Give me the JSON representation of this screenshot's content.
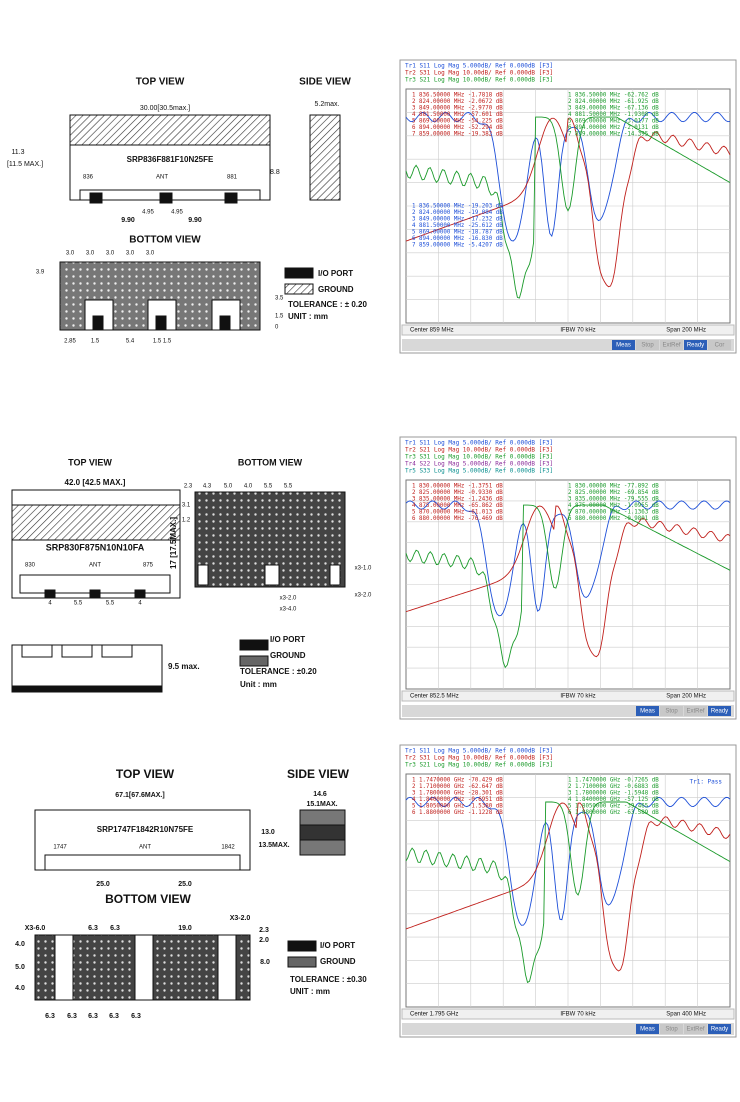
{
  "parts": [
    {
      "drawing": {
        "labels": [
          "TOP VIEW",
          "SIDE  VIEW",
          "30.00[30.5max.]",
          "5.2max.",
          "11.3",
          "[11.5 MAX.]",
          "8.8",
          "SRP836F881F10N25FE",
          "836",
          "ANT",
          "881",
          "4.95",
          "4.95",
          "9.90",
          "9.90",
          "BOTTOM   VIEW",
          "3.0",
          "3.0",
          "3.0",
          "3.0",
          "3.0",
          "3.9",
          "2.85",
          "1.5",
          "5.4",
          "1.5  1.5",
          "3.5",
          "1.5",
          "0",
          "I/O PORT",
          "GROUND",
          "TOLERANCE : ± 0.20",
          "UNIT :  mm"
        ]
      },
      "analyzer": {
        "traces": [
          "Tr1  S11  Log Mag  5.000dB/ Ref  0.000dB  [F3]",
          "Tr2  S31  Log Mag  10.00dB/ Ref  0.000dB  [F3]",
          "Tr3  S21  Log Mag  10.00dB/ Ref  0.000dB  [F3]"
        ],
        "markers_left": [
          "1   836.50000 MHz  -1.7818 dB",
          "2   824.00000 MHz  -2.0672 dB",
          "3   849.00000 MHz  -2.9770 dB",
          "4   881.50000 MHz  -57.601 dB",
          "5   869.00000 MHz  -54.225 dB",
          "6   894.00000 MHz  -52.294 dB",
          "7   859.00000 MHz  -19.382 dB"
        ],
        "markers_right": [
          "1   836.50000 MHz  -62.762 dB",
          "2   824.00000 MHz  -61.925 dB",
          "3   849.00000 MHz  -67.136 dB",
          "4   881.50000 MHz  -1.9308 dB",
          "5   869.00000 MHz  -3.0177 dB",
          "6   894.00000 MHz  -2.0131 dB",
          "7   859.00000 MHz  -14.395 dB"
        ],
        "markers_lower": [
          "1   836.50000 MHz  -19.203 dB",
          "2   824.00000 MHz  -19.084 dB",
          "3   849.00000 MHz  -17.232 dB",
          "4   881.50000 MHz  -25.612 dB",
          "5   869.00000 MHz  -18.787 dB",
          "6   894.00000 MHz  -16.830 dB",
          "7   859.00000 MHz  -5.4207 dB"
        ],
        "footer_left": "Center 859 MHz",
        "footer_mid": "IFBW 70 kHz",
        "footer_right": "Span 200 MHz",
        "buttons": [
          "Meas",
          "Stop",
          "ExtRef",
          "Ready",
          "Cor"
        ]
      }
    },
    {
      "drawing": {
        "labels": [
          "TOP VIEW",
          "BOTTOM VIEW",
          "42.0 [42.5 MAX.]",
          "SRP830F875N10N10FA",
          "830",
          "ANT",
          "875",
          "17 [17.5MAX.]",
          "4",
          "5.5",
          "5.5",
          "4",
          "2.3",
          "4.3",
          "5.0",
          "4.0",
          "5.5",
          "5.5",
          "3.1",
          "1.2",
          "x3-1.0",
          "x3-2.0",
          "x3-2.0",
          "x3-4.0",
          "I/O PORT",
          "GROUND",
          "TOLERANCE : ±0.20",
          "Unit : mm",
          "9.5 max."
        ]
      },
      "analyzer": {
        "traces": [
          "Tr1  S11  Log Mag  5.000dB/ Ref  0.000dB  [F3]",
          "Tr2  S21  Log Mag  10.00dB/ Ref  0.000dB  [F3]",
          "Tr3  S31  Log Mag  10.00dB/ Ref  0.000dB  [F3]",
          "Tr4  S22  Log Mag  5.000dB/ Ref  0.000dB  [F3]",
          "Tr5  S33  Log Mag  5.000dB/ Ref  0.000dB  [F3]"
        ],
        "markers_left": [
          "1   830.00000 MHz  -1.3751 dB",
          "2   825.00000 MHz  -0.9330 dB",
          "3   835.00000 MHz  -1.2436 dB",
          "4   875.00000 MHz  -65.862 dB",
          "5   870.00000 MHz  -61.013 dB",
          "6   880.00000 MHz  -76.469 dB"
        ],
        "markers_right": [
          "1   830.00000 MHz  -77.892 dB",
          "2   825.00000 MHz  -69.854 dB",
          "3   835.00000 MHz  -79.555 dB",
          "4   875.00000 MHz  -1.0955 dB",
          "5   870.00000 MHz  -1.1363 dB",
          "6   880.00000 MHz  -0.9801 dB"
        ],
        "footer_left": "Center 852.5 MHz",
        "footer_mid": "IFBW 70 kHz",
        "footer_right": "Span 200 MHz",
        "buttons": [
          "Meas",
          "Stop",
          "ExtRef",
          "Ready"
        ]
      }
    },
    {
      "drawing": {
        "labels": [
          "TOP VIEW",
          "SIDE VIEW",
          "67.1[67.6MAX.]",
          "SRP1747F1842R10N75FE",
          "1747",
          "ANT",
          "1842",
          "13.0",
          "13.5MAX.",
          "25.0",
          "25.0",
          "14.6",
          "15.1MAX.",
          "BOTTOM VIEW",
          "X3-6.0",
          "6.3",
          "6.3",
          "19.0",
          "X3-2.0",
          "2.3",
          "2.0",
          "4.0",
          "5.0",
          "4.0",
          "8.0",
          "6.3",
          "6.3",
          "6.3",
          "6.3",
          "6.3",
          "I/O PORT",
          "GROUND",
          "TOLERANCE : ±0.30",
          "UNIT : mm"
        ]
      },
      "analyzer": {
        "traces": [
          "Tr1  S11  Log Mag  5.000dB/ Ref  0.000dB  [F3]",
          "Tr2  S31  Log Mag  10.00dB/ Ref  0.000dB  [F3]",
          "Tr3  S21  Log Mag  10.00dB/ Ref  0.000dB  [F3]"
        ],
        "markers_left": [
          "1   1.7470000 GHz  -70.429 dB",
          "2   1.7100000 GHz  -62.647 dB",
          "3   1.7800000 GHz  -28.301 dB",
          "4   1.8400000 GHz  -0.6951 dB",
          "5   1.8050000 GHz  -1.5380 dB",
          "6   1.8800000 GHz  -1.1228 dB"
        ],
        "markers_right": [
          "1   1.7470000 GHz  -0.7265 dB",
          "2   1.7100000 GHz  -0.6883 dB",
          "3   1.7800000 GHz  -1.5948 dB",
          "4   1.8400000 GHz  -57.125 dB",
          "5   1.8050000 GHz  -39.465 dB",
          "6   1.8800000 GHz  -63.589 dB"
        ],
        "pass_label": "Tr1: Pass",
        "footer_left": "Center 1.795 GHz",
        "footer_mid": "IFBW 70 kHz",
        "footer_right": "Span 400 MHz",
        "buttons": [
          "Meas",
          "Stop",
          "ExtRef",
          "Ready"
        ]
      }
    }
  ]
}
